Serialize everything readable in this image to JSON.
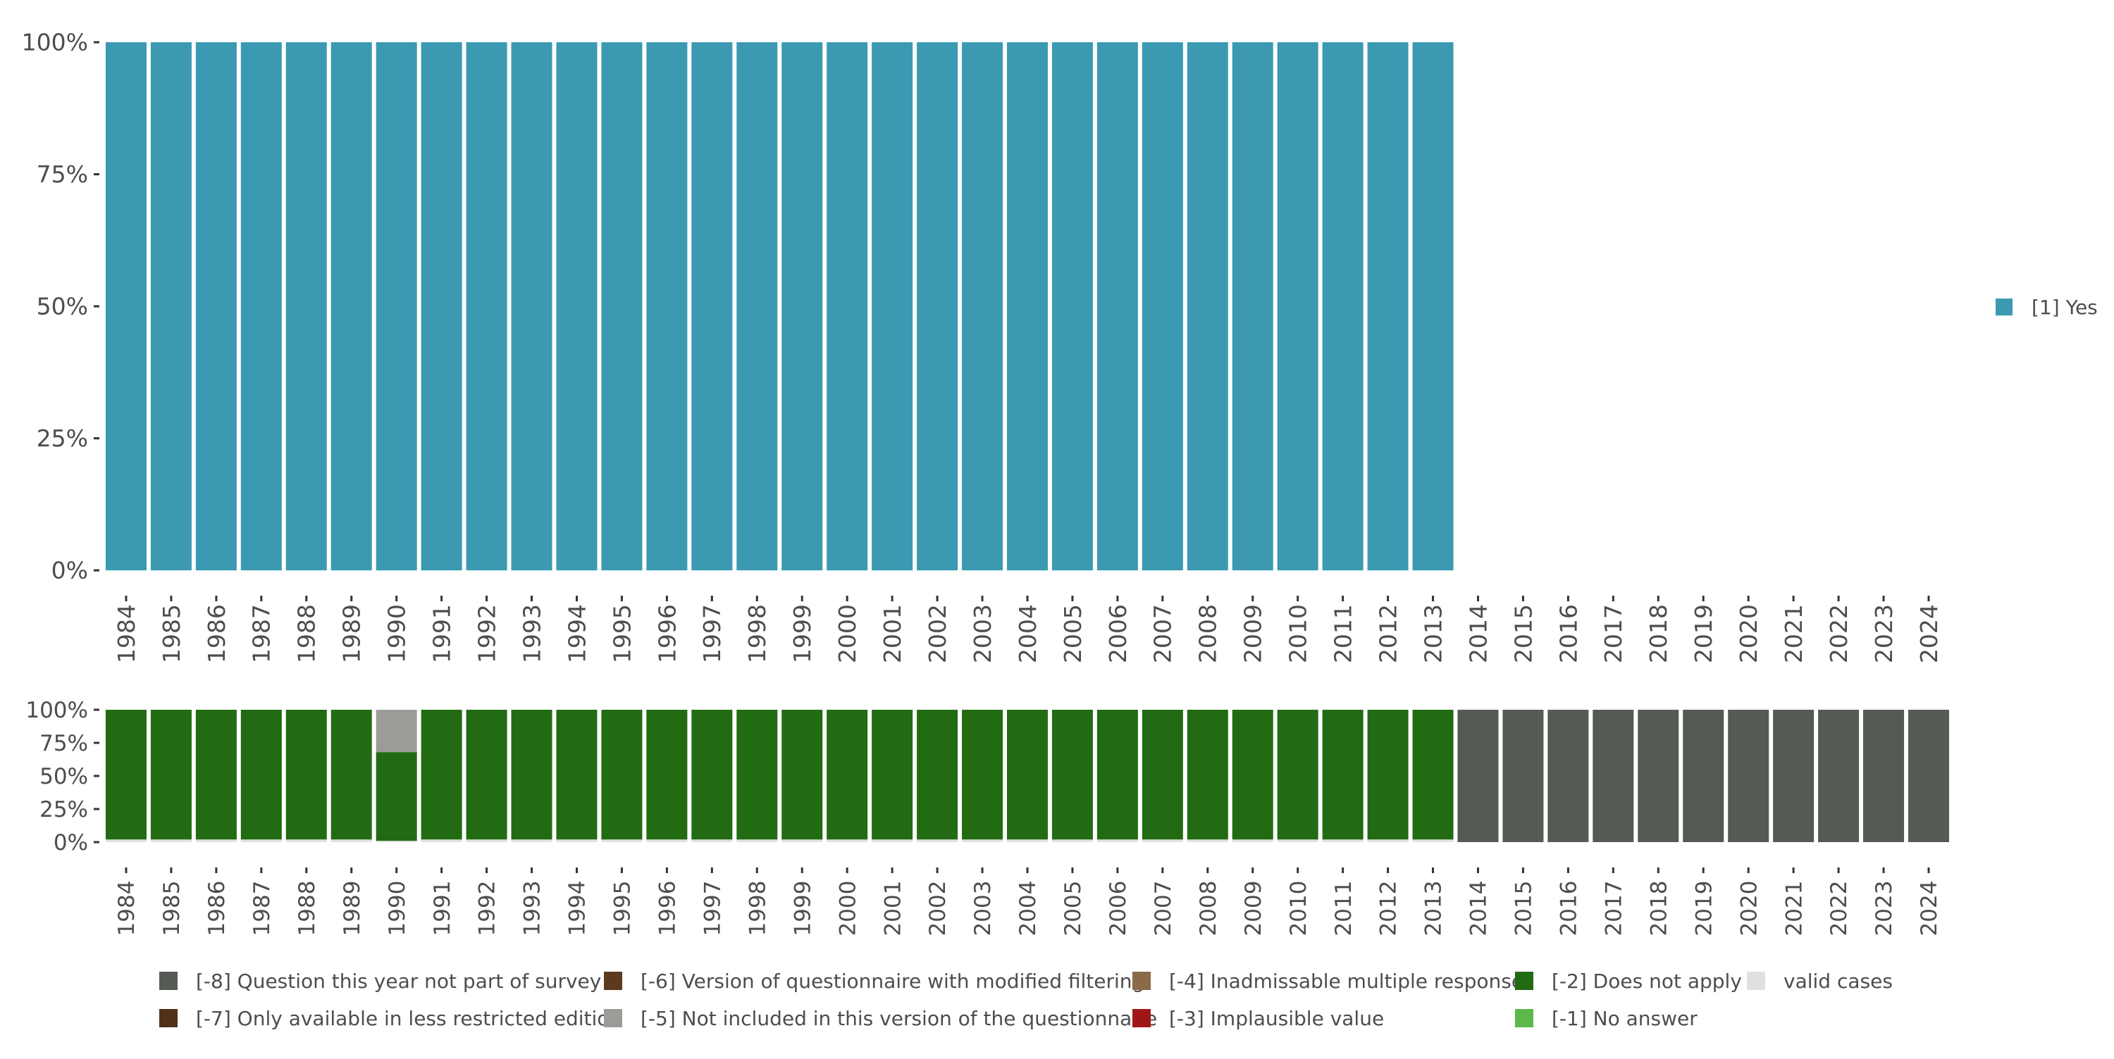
{
  "chart_data": [
    {
      "type": "bar",
      "stacked": true,
      "panel": "top",
      "categories": [
        "1984",
        "1985",
        "1986",
        "1987",
        "1988",
        "1989",
        "1990",
        "1991",
        "1992",
        "1993",
        "1994",
        "1995",
        "1996",
        "1997",
        "1998",
        "1999",
        "2000",
        "2001",
        "2002",
        "2003",
        "2004",
        "2005",
        "2006",
        "2007",
        "2008",
        "2009",
        "2010",
        "2011",
        "2012",
        "2013",
        "2014",
        "2015",
        "2016",
        "2017",
        "2018",
        "2019",
        "2020",
        "2021",
        "2022",
        "2023",
        "2024"
      ],
      "ylim": [
        0,
        100
      ],
      "yticks": [
        "0%",
        "25%",
        "50%",
        "75%",
        "100%"
      ],
      "series": [
        {
          "name": "[1] Yes",
          "color": "#3b9ab2",
          "values": [
            100,
            100,
            100,
            100,
            100,
            100,
            100,
            100,
            100,
            100,
            100,
            100,
            100,
            100,
            100,
            100,
            100,
            100,
            100,
            100,
            100,
            100,
            100,
            100,
            100,
            100,
            100,
            100,
            100,
            100,
            0,
            0,
            0,
            0,
            0,
            0,
            0,
            0,
            0,
            0,
            0
          ]
        }
      ],
      "legend": {
        "position": "right",
        "entries": [
          {
            "label": "[1] Yes",
            "color": "#3b9ab2"
          }
        ]
      }
    },
    {
      "type": "bar",
      "stacked": true,
      "panel": "bottom",
      "categories": [
        "1984",
        "1985",
        "1986",
        "1987",
        "1988",
        "1989",
        "1990",
        "1991",
        "1992",
        "1993",
        "1994",
        "1995",
        "1996",
        "1997",
        "1998",
        "1999",
        "2000",
        "2001",
        "2002",
        "2003",
        "2004",
        "2005",
        "2006",
        "2007",
        "2008",
        "2009",
        "2010",
        "2011",
        "2012",
        "2013",
        "2014",
        "2015",
        "2016",
        "2017",
        "2018",
        "2019",
        "2020",
        "2021",
        "2022",
        "2023",
        "2024"
      ],
      "ylim": [
        0,
        100
      ],
      "yticks": [
        "0%",
        "25%",
        "50%",
        "75%",
        "100%"
      ],
      "series": [
        {
          "name": "valid cases",
          "color": "#e0e0de",
          "values": [
            2,
            2,
            2,
            2,
            2,
            2,
            1,
            2,
            2,
            2,
            2,
            2,
            2,
            2,
            2,
            2,
            2,
            2,
            2,
            2,
            2,
            2,
            2,
            2,
            2,
            2,
            2,
            2,
            2,
            2,
            0,
            0,
            0,
            0,
            0,
            0,
            0,
            0,
            0,
            0,
            0
          ]
        },
        {
          "name": "[-2] Does not apply",
          "color": "#226b13",
          "values": [
            98,
            98,
            98,
            98,
            98,
            98,
            67,
            98,
            98,
            98,
            98,
            98,
            98,
            98,
            98,
            98,
            98,
            98,
            98,
            98,
            98,
            98,
            98,
            98,
            98,
            98,
            98,
            98,
            98,
            98,
            0,
            0,
            0,
            0,
            0,
            0,
            0,
            0,
            0,
            0,
            0
          ]
        },
        {
          "name": "[-5] Not included in this version of the questionnaire",
          "color": "#9a9c95",
          "values": [
            0,
            0,
            0,
            0,
            0,
            0,
            32,
            0,
            0,
            0,
            0,
            0,
            0,
            0,
            0,
            0,
            0,
            0,
            0,
            0,
            0,
            0,
            0,
            0,
            0,
            0,
            0,
            0,
            0,
            0,
            0,
            0,
            0,
            0,
            0,
            0,
            0,
            0,
            0,
            0,
            0
          ]
        },
        {
          "name": "[-8] Question this year not part of survey",
          "color": "#555a55",
          "values": [
            0,
            0,
            0,
            0,
            0,
            0,
            0,
            0,
            0,
            0,
            0,
            0,
            0,
            0,
            0,
            0,
            0,
            0,
            0,
            0,
            0,
            0,
            0,
            0,
            0,
            0,
            0,
            0,
            0,
            0,
            100,
            100,
            100,
            100,
            100,
            100,
            100,
            100,
            100,
            100,
            100
          ]
        }
      ],
      "legend": {
        "position": "bottom",
        "entries": [
          {
            "label": "[-8] Question this year not part of survey",
            "color": "#555a55"
          },
          {
            "label": "[-7] Only available in less restricted edition",
            "color": "#4f3217"
          },
          {
            "label": "[-6] Version of questionnaire with modified filtering",
            "color": "#5e3a1d"
          },
          {
            "label": "[-5] Not included in this version of the questionnaire",
            "color": "#9a9c95"
          },
          {
            "label": "[-4] Inadmissable multiple response",
            "color": "#8b6a4a"
          },
          {
            "label": "[-3] Implausible value",
            "color": "#a01616"
          },
          {
            "label": "[-2] Does not apply",
            "color": "#226b13"
          },
          {
            "label": "[-1] No answer",
            "color": "#5ab94a"
          },
          {
            "label": "valid cases",
            "color": "#e0e0de"
          }
        ]
      }
    }
  ]
}
